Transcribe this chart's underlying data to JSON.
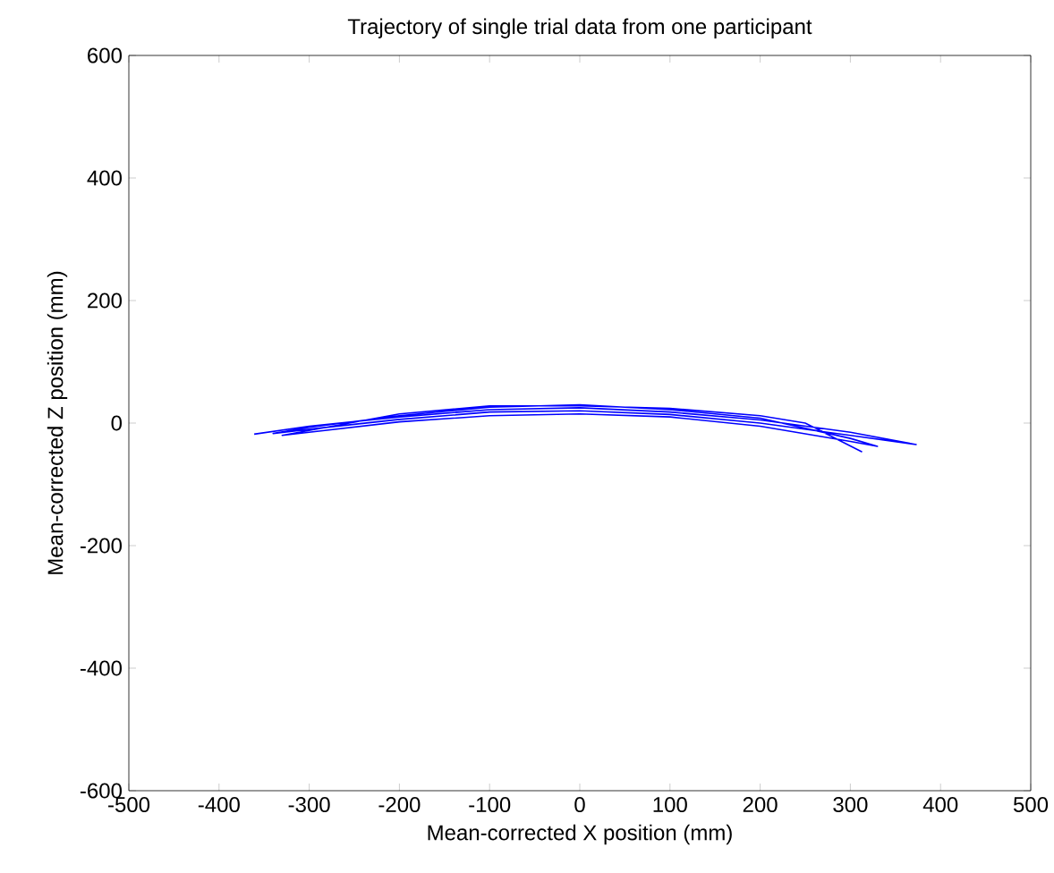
{
  "chart_data": {
    "type": "line",
    "title": "Trajectory of single trial data from one participant",
    "xlabel": "Mean-corrected X position (mm)",
    "ylabel": "Mean-corrected Z position (mm)",
    "xlim": [
      -500,
      500
    ],
    "ylim": [
      -600,
      600
    ],
    "xticks": [
      -500,
      -400,
      -300,
      -200,
      -100,
      0,
      100,
      200,
      300,
      400,
      500
    ],
    "yticks": [
      -600,
      -400,
      -200,
      0,
      200,
      400,
      600
    ],
    "marker": "none",
    "line_style": "solid",
    "series": [
      {
        "color": "#0000ff",
        "x": [
          -361,
          -300,
          -200,
          -100,
          0,
          100,
          200,
          300,
          373,
          300,
          200,
          100,
          0,
          -100,
          -200,
          -300,
          -340,
          -300,
          -200,
          -100,
          0,
          100,
          200,
          300,
          330,
          300,
          200,
          100,
          0,
          -100,
          -200,
          -300,
          -330,
          -200,
          -100,
          0,
          100,
          200,
          250,
          313
        ],
        "values": [
          -18,
          -5,
          10,
          22,
          25,
          18,
          5,
          -15,
          -35,
          -20,
          0,
          14,
          20,
          18,
          6,
          -10,
          -17,
          -7,
          12,
          26,
          30,
          22,
          8,
          -25,
          -38,
          -30,
          -5,
          10,
          15,
          12,
          2,
          -15,
          -20,
          15,
          28,
          28,
          24,
          12,
          0,
          -47
        ]
      }
    ]
  }
}
